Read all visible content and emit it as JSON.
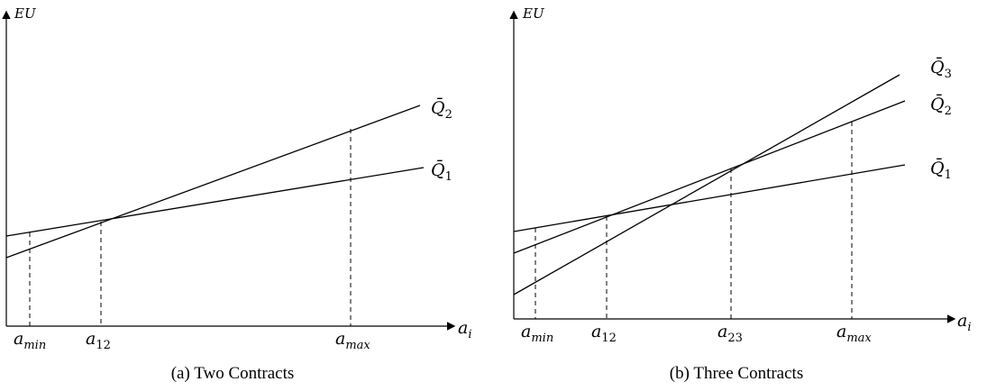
{
  "panels": [
    {
      "caption": "(a) Two Contracts",
      "y_label": "EU",
      "x_label": "a",
      "x_label_sub": "i",
      "ticks": [
        {
          "base": "a",
          "sub": "min"
        },
        {
          "base": "a",
          "sub": "12"
        },
        {
          "base": "a",
          "sub": "max"
        }
      ],
      "lines": [
        {
          "base": "Q̄",
          "sub": "2"
        },
        {
          "base": "Q̄",
          "sub": "1"
        }
      ]
    },
    {
      "caption": "(b) Three Contracts",
      "y_label": "EU",
      "x_label": "a",
      "x_label_sub": "i",
      "ticks": [
        {
          "base": "a",
          "sub": "min"
        },
        {
          "base": "a",
          "sub": "12"
        },
        {
          "base": "a",
          "sub": "23"
        },
        {
          "base": "a",
          "sub": "max"
        }
      ],
      "lines": [
        {
          "base": "Q̄",
          "sub": "3"
        },
        {
          "base": "Q̄",
          "sub": "2"
        },
        {
          "base": "Q̄",
          "sub": "1"
        }
      ]
    }
  ]
}
